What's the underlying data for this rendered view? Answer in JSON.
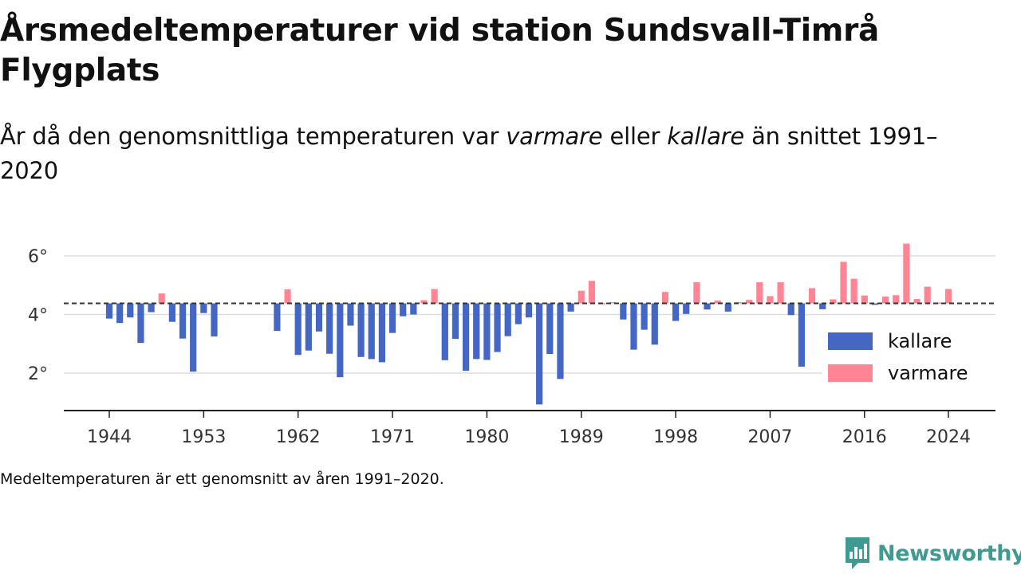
{
  "title": "Årsmedeltemperaturer vid station Sundsvall-Timrå Flygplats",
  "subtitle": {
    "before": "År då den genomsnittliga temperaturen var ",
    "warm": "varmare",
    "middle": " eller ",
    "cold": "kallare",
    "after": " än snittet 1991–2020"
  },
  "footnote": "Medeltemperaturen är ett genomsnitt av åren 1991–2020.",
  "brand": {
    "name": "Newsworthy",
    "icon": "newsworthy-logo-icon"
  },
  "colors": {
    "kallare": "#4466c4",
    "varmare": "#ff8595",
    "reference_line": "#333333",
    "grid": "#dddddd",
    "brand": "#3f9b92"
  },
  "chart_data": {
    "type": "bar",
    "baseline": 4.38,
    "ylim": [
      0.8,
      7.2
    ],
    "yticks": [
      2,
      4,
      6
    ],
    "ytick_labels": [
      "2°",
      "4°",
      "6°"
    ],
    "xticks": [
      1944,
      1953,
      1962,
      1971,
      1980,
      1989,
      1998,
      2007,
      2016,
      2024
    ],
    "xlim": [
      1940,
      2029
    ],
    "legend": {
      "position": "bottom-right",
      "items": [
        {
          "key": "kallare",
          "label": "kallare"
        },
        {
          "key": "varmare",
          "label": "varmare"
        }
      ]
    },
    "grid": true,
    "years": [
      1944,
      1945,
      1946,
      1947,
      1948,
      1949,
      1950,
      1951,
      1952,
      1953,
      1954,
      1960,
      1961,
      1962,
      1963,
      1964,
      1965,
      1966,
      1967,
      1968,
      1969,
      1970,
      1971,
      1972,
      1973,
      1974,
      1975,
      1976,
      1977,
      1978,
      1979,
      1980,
      1981,
      1982,
      1983,
      1984,
      1985,
      1986,
      1987,
      1988,
      1989,
      1990,
      1991,
      1992,
      1993,
      1994,
      1995,
      1996,
      1997,
      1998,
      1999,
      2000,
      2001,
      2002,
      2003,
      2004,
      2005,
      2006,
      2007,
      2008,
      2009,
      2010,
      2011,
      2012,
      2013,
      2014,
      2015,
      2016,
      2017,
      2018,
      2019,
      2020,
      2021,
      2022,
      2023,
      2024
    ],
    "values": [
      3.86,
      3.71,
      3.9,
      3.03,
      4.08,
      4.72,
      3.75,
      3.18,
      2.05,
      4.05,
      3.25,
      3.44,
      4.86,
      2.62,
      2.77,
      3.42,
      2.66,
      1.86,
      3.62,
      2.55,
      2.48,
      2.37,
      3.37,
      3.94,
      4.0,
      4.49,
      4.87,
      2.44,
      3.17,
      2.08,
      2.48,
      2.45,
      2.72,
      3.26,
      3.67,
      3.9,
      0.93,
      2.65,
      1.8,
      4.1,
      4.81,
      5.15,
      4.39,
      4.42,
      3.83,
      2.8,
      3.48,
      2.97,
      4.77,
      3.78,
      4.02,
      5.1,
      4.17,
      4.48,
      4.1,
      4.42,
      4.5,
      5.1,
      4.63,
      5.1,
      3.98,
      2.22,
      4.9,
      4.18,
      4.52,
      5.8,
      5.22,
      4.65,
      4.33,
      4.61,
      4.66,
      6.42,
      4.53,
      4.95,
      4.41,
      4.87
    ]
  }
}
